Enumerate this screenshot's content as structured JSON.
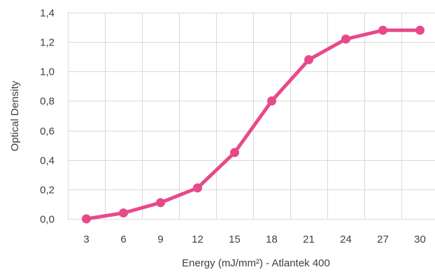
{
  "chart_data": {
    "type": "line",
    "title": "",
    "xlabel": "Energy (mJ/mm²) - Atlantek 400",
    "ylabel": "Optical Density",
    "x": [
      3,
      6,
      9,
      12,
      15,
      18,
      21,
      24,
      27,
      30
    ],
    "x_tick_labels": [
      "3",
      "6",
      "9",
      "12",
      "15",
      "18",
      "21",
      "24",
      "27",
      "30"
    ],
    "y_tick_labels": [
      "0,0",
      "0,2",
      "0,4",
      "0,6",
      "0,8",
      "1,0",
      "1,2",
      "1,4"
    ],
    "y_ticks": [
      0,
      0.2,
      0.4,
      0.6,
      0.8,
      1.0,
      1.2,
      1.4
    ],
    "ylim": [
      0,
      1.4
    ],
    "grid": true,
    "legend": "none",
    "series": [
      {
        "color": "#e8498a",
        "values": [
          0.0,
          0.04,
          0.11,
          0.21,
          0.45,
          0.8,
          1.08,
          1.22,
          1.28,
          1.28
        ]
      }
    ]
  }
}
